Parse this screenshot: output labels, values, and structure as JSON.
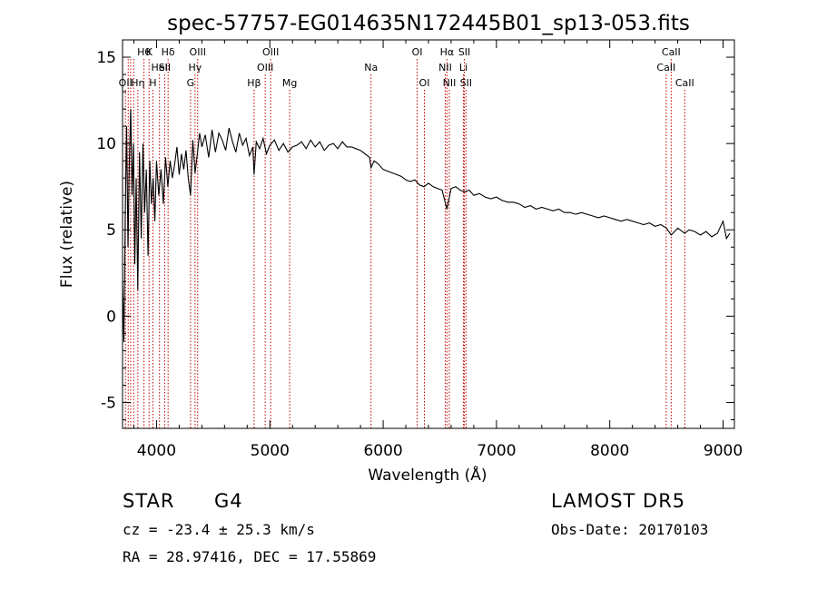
{
  "chart_data": {
    "type": "line",
    "title": "spec-57757-EG014635N172445B01_sp13-053.fits",
    "xlabel": "Wavelength (Å)",
    "ylabel": "Flux (relative)",
    "xlim": [
      3700,
      9100
    ],
    "ylim": [
      -6.5,
      16
    ],
    "x_ticks": [
      4000,
      5000,
      6000,
      7000,
      8000,
      9000
    ],
    "y_ticks": [
      -5,
      0,
      5,
      10,
      15
    ],
    "grid": false,
    "line_color": "#000000",
    "marker_color": "#c00000",
    "series": [
      {
        "x": [
          3700,
          3712,
          3724,
          3736,
          3748,
          3760,
          3772,
          3784,
          3796,
          3808,
          3820,
          3835,
          3850,
          3865,
          3880,
          3895,
          3910,
          3925,
          3940,
          3955,
          3970,
          3985,
          4000,
          4020,
          4040,
          4060,
          4080,
          4100,
          4120,
          4140,
          4160,
          4180,
          4200,
          4220,
          4240,
          4260,
          4280,
          4300,
          4320,
          4340,
          4360,
          4380,
          4400,
          4430,
          4460,
          4490,
          4520,
          4550,
          4580,
          4610,
          4640,
          4670,
          4700,
          4730,
          4760,
          4790,
          4820,
          4850,
          4861,
          4880,
          4910,
          4940,
          4970,
          5000,
          5040,
          5080,
          5120,
          5160,
          5200,
          5240,
          5280,
          5320,
          5360,
          5400,
          5440,
          5480,
          5520,
          5560,
          5600,
          5640,
          5680,
          5720,
          5760,
          5800,
          5840,
          5880,
          5893,
          5920,
          5960,
          6000,
          6040,
          6080,
          6120,
          6160,
          6200,
          6240,
          6280,
          6320,
          6360,
          6400,
          6440,
          6480,
          6520,
          6563,
          6600,
          6640,
          6680,
          6720,
          6760,
          6800,
          6850,
          6900,
          6950,
          7000,
          7050,
          7100,
          7150,
          7200,
          7250,
          7300,
          7350,
          7400,
          7450,
          7500,
          7550,
          7600,
          7650,
          7700,
          7750,
          7800,
          7850,
          7900,
          7950,
          8000,
          8050,
          8100,
          8150,
          8200,
          8250,
          8300,
          8350,
          8400,
          8450,
          8500,
          8542,
          8600,
          8662,
          8700,
          8750,
          8800,
          8850,
          8900,
          8950,
          9000,
          9030,
          9060
        ],
        "y": [
          2.0,
          -1.5,
          6.0,
          11.0,
          4.0,
          9.0,
          12.0,
          7.0,
          10.0,
          3.0,
          8.0,
          1.5,
          9.5,
          4.5,
          10.0,
          6.0,
          8.5,
          3.5,
          9.0,
          6.5,
          8.0,
          5.5,
          9.0,
          7.0,
          8.5,
          6.5,
          9.2,
          7.5,
          9.0,
          8.0,
          8.8,
          9.8,
          8.2,
          9.4,
          8.5,
          9.6,
          8.0,
          7.0,
          10.2,
          8.3,
          9.4,
          10.6,
          9.8,
          10.5,
          9.2,
          10.8,
          9.5,
          10.6,
          10.2,
          9.6,
          10.9,
          10.1,
          9.5,
          10.6,
          9.9,
          10.3,
          9.3,
          9.8,
          8.2,
          10.1,
          9.7,
          10.3,
          9.4,
          9.9,
          10.2,
          9.6,
          10.0,
          9.5,
          9.8,
          9.9,
          10.1,
          9.7,
          10.2,
          9.8,
          10.1,
          9.6,
          9.9,
          10.0,
          9.7,
          10.1,
          9.8,
          9.8,
          9.7,
          9.6,
          9.4,
          9.2,
          8.6,
          9.0,
          8.8,
          8.5,
          8.4,
          8.3,
          8.2,
          8.1,
          7.9,
          7.8,
          7.9,
          7.6,
          7.5,
          7.7,
          7.5,
          7.4,
          7.3,
          6.2,
          7.4,
          7.5,
          7.3,
          7.2,
          7.3,
          7.0,
          7.1,
          6.9,
          6.8,
          6.9,
          6.7,
          6.6,
          6.6,
          6.5,
          6.3,
          6.4,
          6.2,
          6.3,
          6.2,
          6.1,
          6.2,
          6.0,
          6.0,
          5.9,
          6.0,
          5.9,
          5.8,
          5.7,
          5.8,
          5.7,
          5.6,
          5.5,
          5.6,
          5.5,
          5.4,
          5.3,
          5.4,
          5.2,
          5.3,
          5.1,
          4.7,
          5.1,
          4.8,
          5.0,
          4.9,
          4.7,
          4.9,
          4.6,
          4.8,
          5.5,
          4.5,
          4.8
        ]
      }
    ],
    "line_markers": [
      {
        "wl": 3726,
        "label": "OII",
        "row": 2
      },
      {
        "wl": 3750,
        "label": "",
        "row": 0
      },
      {
        "wl": 3771,
        "label": "",
        "row": 0
      },
      {
        "wl": 3798,
        "label": "",
        "row": 0
      },
      {
        "wl": 3835,
        "label": "Hη",
        "row": 2
      },
      {
        "wl": 3889,
        "label": "Hθ",
        "row": 0
      },
      {
        "wl": 3934,
        "label": "K",
        "row": 0
      },
      {
        "wl": 3968,
        "label": "H",
        "row": 2
      },
      {
        "wl": 4026,
        "label": "HeI",
        "row": 1
      },
      {
        "wl": 4072,
        "label": "SII",
        "row": 1
      },
      {
        "wl": 4102,
        "label": "Hδ",
        "row": 0
      },
      {
        "wl": 4300,
        "label": "G",
        "row": 2
      },
      {
        "wl": 4340,
        "label": "Hγ",
        "row": 1
      },
      {
        "wl": 4363,
        "label": "OIII",
        "row": 0
      },
      {
        "wl": 4861,
        "label": "Hβ",
        "row": 2
      },
      {
        "wl": 4959,
        "label": "OIII",
        "row": 1
      },
      {
        "wl": 5007,
        "label": "OIII",
        "row": 0
      },
      {
        "wl": 5175,
        "label": "Mg",
        "row": 2
      },
      {
        "wl": 5893,
        "label": "Na",
        "row": 1
      },
      {
        "wl": 6300,
        "label": "OI",
        "row": 0
      },
      {
        "wl": 6364,
        "label": "OI",
        "row": 2
      },
      {
        "wl": 6548,
        "label": "NII",
        "row": 1
      },
      {
        "wl": 6563,
        "label": "Hα",
        "row": 0
      },
      {
        "wl": 6584,
        "label": "NII",
        "row": 2
      },
      {
        "wl": 6708,
        "label": "Li",
        "row": 1
      },
      {
        "wl": 6717,
        "label": "SII",
        "row": 0
      },
      {
        "wl": 6731,
        "label": "SII",
        "row": 2
      },
      {
        "wl": 8498,
        "label": "CaII",
        "row": 1
      },
      {
        "wl": 8542,
        "label": "CaII",
        "row": 0
      },
      {
        "wl": 8662,
        "label": "CaII",
        "row": 2
      }
    ]
  },
  "footer": {
    "object_class": "STAR",
    "subclass": "G4",
    "survey": "LAMOST  DR5",
    "velocity": "cz = -23.4 ± 25.3 km/s",
    "obs_date": "Obs-Date: 20170103",
    "coords": "RA =  28.97416, DEC =  17.55869"
  }
}
